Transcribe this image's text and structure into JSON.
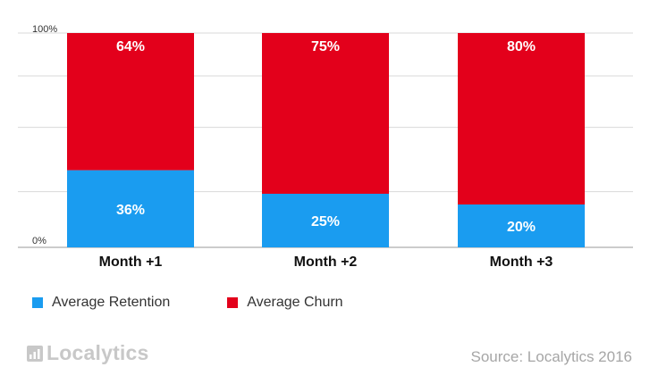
{
  "chart_data": {
    "type": "bar",
    "stacked": true,
    "categories": [
      "Month +1",
      "Month +2",
      "Month +3"
    ],
    "series": [
      {
        "name": "Average Retention",
        "values": [
          36,
          25,
          20
        ],
        "labels": [
          "36%",
          "25%",
          "20%"
        ],
        "color": "#1a9cf0"
      },
      {
        "name": "Average Churn",
        "values": [
          64,
          75,
          80
        ],
        "labels": [
          "64%",
          "75%",
          "80%"
        ],
        "color": "#e3001b"
      }
    ],
    "y_ticks": [
      "100%",
      "0%"
    ],
    "ylim": [
      0,
      100
    ],
    "grid": true,
    "legend": "bottom-left"
  },
  "branding": {
    "logo_text": "Localytics"
  },
  "source": "Source: Localytics 2016"
}
